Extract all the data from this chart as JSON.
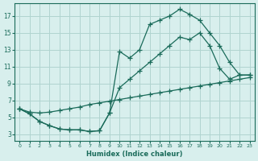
{
  "xlabel": "Humidex (Indice chaleur)",
  "bg_color": "#d8efed",
  "grid_color": "#b0d4d0",
  "line_color": "#1a6b5a",
  "xlim": [
    -0.5,
    23.5
  ],
  "ylim": [
    2.2,
    18.5
  ],
  "xticks": [
    0,
    1,
    2,
    3,
    4,
    5,
    6,
    7,
    8,
    9,
    10,
    11,
    12,
    13,
    14,
    15,
    16,
    17,
    18,
    19,
    20,
    21,
    22,
    23
  ],
  "yticks": [
    3,
    5,
    7,
    9,
    11,
    13,
    15,
    17
  ],
  "line1_x": [
    0,
    1,
    2,
    3,
    4,
    5,
    6,
    7,
    8,
    9,
    10,
    11,
    12,
    13,
    14,
    15,
    16,
    17,
    18,
    19,
    20,
    21,
    22,
    23
  ],
  "line1_y": [
    6.0,
    5.4,
    4.5,
    4.0,
    3.6,
    3.5,
    3.5,
    3.3,
    3.4,
    5.5,
    12.8,
    12.0,
    13.0,
    16.0,
    16.5,
    17.0,
    17.8,
    17.2,
    16.5,
    15.0,
    13.5,
    11.5,
    10.0,
    10.0
  ],
  "line2_x": [
    0,
    1,
    2,
    3,
    4,
    5,
    6,
    7,
    8,
    9,
    10,
    11,
    12,
    13,
    14,
    15,
    16,
    17,
    18,
    19,
    20,
    21,
    22,
    23
  ],
  "line2_y": [
    6.0,
    5.4,
    4.5,
    4.0,
    3.6,
    3.5,
    3.5,
    3.3,
    3.4,
    5.5,
    8.5,
    9.5,
    10.5,
    11.5,
    12.5,
    13.5,
    14.5,
    14.2,
    15.0,
    13.5,
    10.8,
    9.5,
    10.0,
    10.0
  ],
  "line3_x": [
    0,
    1,
    2,
    3,
    4,
    5,
    6,
    7,
    8,
    9,
    10,
    11,
    12,
    13,
    14,
    15,
    16,
    17,
    18,
    19,
    20,
    21,
    22,
    23
  ],
  "line3_y": [
    6.0,
    5.6,
    5.5,
    5.6,
    5.8,
    6.0,
    6.2,
    6.5,
    6.7,
    6.9,
    7.1,
    7.3,
    7.5,
    7.7,
    7.9,
    8.1,
    8.3,
    8.5,
    8.7,
    8.9,
    9.1,
    9.3,
    9.5,
    9.7
  ]
}
